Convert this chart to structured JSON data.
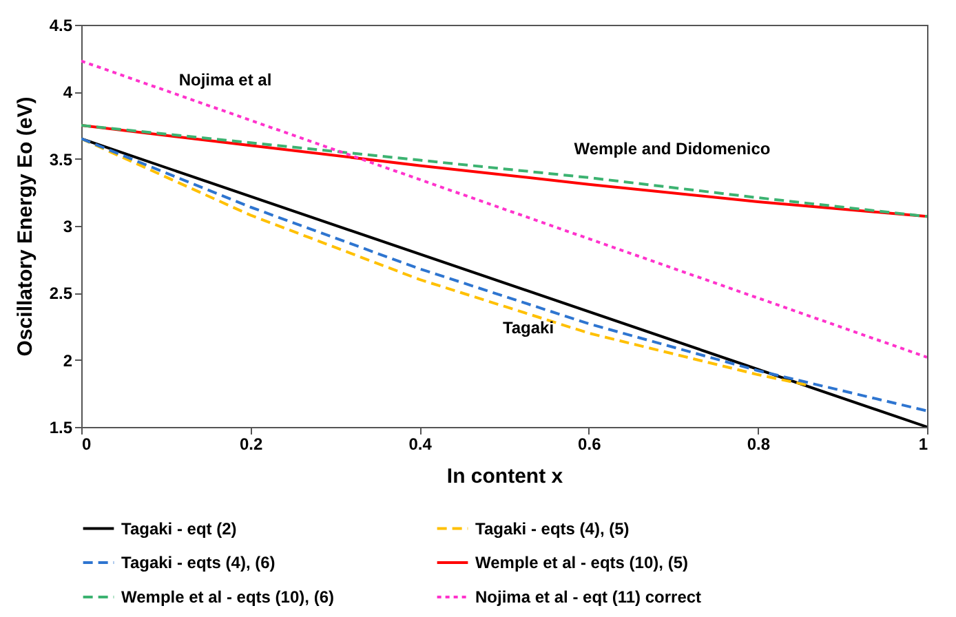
{
  "chart_data": {
    "type": "line",
    "xlabel": "In  content   x",
    "ylabel": "Oscillatory Energy  Eo   (eV)",
    "xlim": [
      0,
      1
    ],
    "ylim": [
      1.5,
      4.5
    ],
    "xticks": [
      0,
      0.2,
      0.4,
      0.6,
      0.8,
      1
    ],
    "yticks": [
      1.5,
      2,
      2.5,
      3,
      3.5,
      4,
      4.5
    ],
    "grid": false,
    "legend": "bottom",
    "marker": "none",
    "series": [
      {
        "name": "Tagaki - eqt (2)",
        "color": "#000000",
        "line_style": "solid",
        "x": [
          0,
          1
        ],
        "values": [
          3.65,
          1.5
        ]
      },
      {
        "name": "Tagaki - eqts (4), (5)",
        "color": "#ffc000",
        "line_style": "dashed",
        "x": [
          0,
          0.2,
          0.4,
          0.6,
          0.8,
          0.86
        ],
        "values": [
          3.65,
          3.08,
          2.6,
          2.2,
          1.89,
          1.81
        ]
      },
      {
        "name": "Tagaki - eqts (4), (6)",
        "color": "#2e75d0",
        "line_style": "dashed",
        "x": [
          0,
          0.2,
          0.4,
          0.6,
          0.8,
          1
        ],
        "values": [
          3.65,
          3.14,
          2.68,
          2.27,
          1.92,
          1.62
        ]
      },
      {
        "name": "Wemple et al - eqts (10), (5)",
        "color": "#ff0000",
        "line_style": "solid",
        "x": [
          0,
          0.2,
          0.4,
          0.6,
          0.8,
          1
        ],
        "values": [
          3.75,
          3.6,
          3.45,
          3.31,
          3.18,
          3.07
        ]
      },
      {
        "name": "Wemple et al - eqts (10), (6)",
        "color": "#3cb371",
        "line_style": "dashed",
        "x": [
          0,
          0.2,
          0.4,
          0.6,
          0.8,
          1
        ],
        "values": [
          3.75,
          3.62,
          3.49,
          3.36,
          3.21,
          3.07
        ]
      },
      {
        "name": "Nojima et al - eqt (11) correct",
        "color": "#ff33cc",
        "line_style": "dotted",
        "x": [
          0,
          1
        ],
        "values": [
          4.23,
          2.02
        ]
      }
    ],
    "annotations": [
      "Nojima et al",
      "Wemple and Didomenico",
      "Tagaki"
    ]
  }
}
